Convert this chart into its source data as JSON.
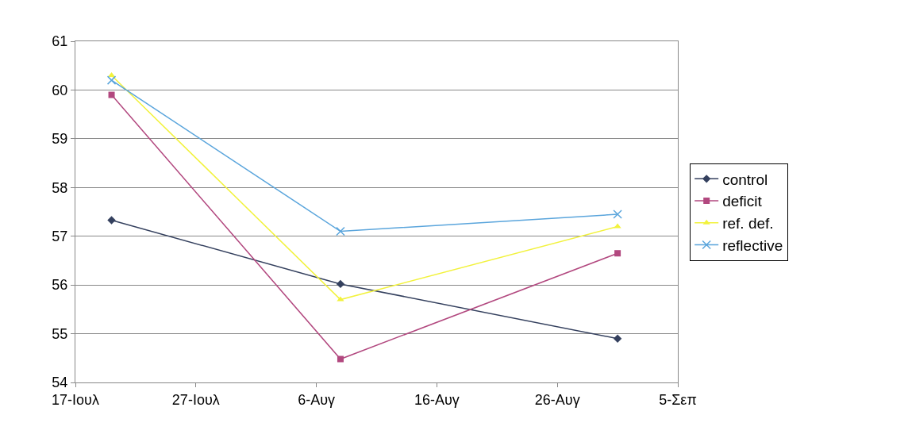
{
  "chart_data": {
    "type": "line",
    "x": [
      "--07-20",
      "--08-08",
      "--08-31"
    ],
    "series": [
      {
        "name": "control",
        "color": "#34405e",
        "marker": "diamond",
        "values": [
          57.33,
          56.02,
          54.9
        ]
      },
      {
        "name": "deficit",
        "color": "#b2487f",
        "marker": "square",
        "values": [
          59.9,
          54.48,
          56.65
        ]
      },
      {
        "name": "ref. def.",
        "color": "#f2f23c",
        "marker": "triangle",
        "values": [
          60.3,
          55.7,
          57.2
        ]
      },
      {
        "name": "reflective",
        "color": "#5aa5dc",
        "marker": "cross",
        "values": [
          60.2,
          57.1,
          57.45
        ]
      }
    ],
    "xlim": [
      "--07-17",
      "--09-05"
    ],
    "xticks": [
      {
        "value": "--07-17",
        "label": "17-Ιουλ"
      },
      {
        "value": "--07-27",
        "label": "27-Ιουλ"
      },
      {
        "value": "--08-06",
        "label": "6-Αυγ"
      },
      {
        "value": "--08-16",
        "label": "16-Αυγ"
      },
      {
        "value": "--08-26",
        "label": "26-Αυγ"
      },
      {
        "value": "--09-05",
        "label": "5-Σεπ"
      }
    ],
    "ylim": [
      54,
      61
    ],
    "yticks": [
      54,
      55,
      56,
      57,
      58,
      59,
      60,
      61
    ],
    "grid": "y",
    "legend": "right",
    "line_style": "solid"
  }
}
